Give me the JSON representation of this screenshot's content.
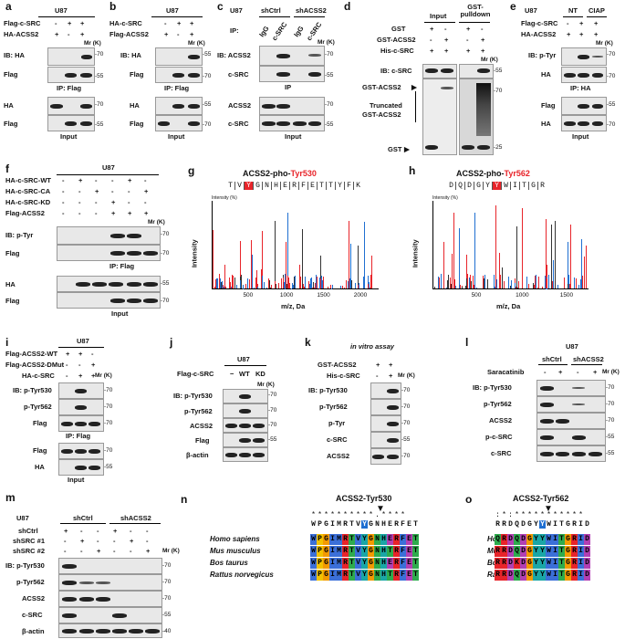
{
  "a": {
    "label": "a",
    "cell": "U87",
    "rows": [
      "Flag-c-SRC",
      "HA-ACSS2"
    ],
    "signs": [
      [
        "-",
        "+",
        "+"
      ],
      [
        "+",
        "-",
        "+"
      ]
    ],
    "mr": "Mr (K)",
    "ib1": "IB: HA",
    "ib2": "Flag",
    "ip": "IP: Flag",
    "in1": "HA",
    "in2": "Flag",
    "inp": "Input",
    "m70": "-70",
    "m55": "-55"
  },
  "b": {
    "label": "b",
    "cell": "U87",
    "rows": [
      "HA-c-SRC",
      "Flag-ACSS2"
    ],
    "signs": [
      [
        "-",
        "+",
        "+"
      ],
      [
        "+",
        "-",
        "+"
      ]
    ],
    "mr": "Mr (K)",
    "ib1": "IB: HA",
    "ib2": "Flag",
    "ip": "IP: Flag",
    "in1": "HA",
    "in2": "Flag",
    "inp": "Input",
    "m70": "-70",
    "m55": "-55"
  },
  "c": {
    "label": "c",
    "cell": "U87",
    "sh1": "shCtrl",
    "sh2": "shACSS2",
    "ip": "IP:",
    "lanes": [
      "IgG",
      "c-SRC",
      "IgG",
      "c-SRC"
    ],
    "mr": "Mr (K)",
    "ib1": "IB: ACSS2",
    "ib2": "c-SRC",
    "ipl": "IP",
    "in1": "ACSS2",
    "in2": "c-SRC",
    "inp": "Input",
    "m70": "-70",
    "m55": "-55"
  },
  "d": {
    "label": "d",
    "hdr1": "Input",
    "hdr2": "GST-pulldown",
    "rows": [
      "GST",
      "GST-ACSS2",
      "His-c-SRC"
    ],
    "signs": [
      [
        "+",
        "-",
        "+",
        "-"
      ],
      [
        "-",
        "+",
        "-",
        "+"
      ],
      [
        "+",
        "+",
        "+",
        "+"
      ]
    ],
    "mr": "Mr (K)",
    "ib": "IB: c-SRC",
    "gstacss2": "GST-ACSS2",
    "trunc1": "Truncated",
    "trunc2": "GST-ACSS2",
    "gst": "GST",
    "m55": "-55",
    "m70": "-70",
    "m25": "-25"
  },
  "e": {
    "label": "e",
    "cell": "U87",
    "nt": "NT",
    "ciap": "CIAP",
    "rows": [
      "Flag-c-SRC",
      "HA-ACSS2"
    ],
    "signs": [
      [
        "-",
        "+",
        "+"
      ],
      [
        "+",
        "+",
        "+"
      ]
    ],
    "mr": "Mr (K)",
    "ib1": "IB: p-Tyr",
    "ib2": "HA",
    "ip": "IP: HA",
    "in1": "Flag",
    "in2": "HA",
    "inp": "Input",
    "m70": "-70",
    "m55": "-55"
  },
  "f": {
    "label": "f",
    "cell": "U87",
    "rows": [
      "HA-c-SRC-WT",
      "HA-c-SRC-CA",
      "HA-c-SRC-KD",
      "Flag-ACSS2"
    ],
    "signs": [
      [
        "-",
        "+",
        "-",
        "-",
        "+",
        "-"
      ],
      [
        "-",
        "-",
        "+",
        "-",
        "-",
        "+"
      ],
      [
        "-",
        "-",
        "-",
        "+",
        "-",
        "-"
      ],
      [
        "-",
        "-",
        "-",
        "+",
        "+",
        "+"
      ]
    ],
    "mr": "Mr (K)",
    "ib1": "IB: p-Tyr",
    "ib2": "Flag",
    "ip": "IP: Flag",
    "in1": "HA",
    "in2": "Flag",
    "inp": "Input",
    "m70": "-70",
    "m55": "-55"
  },
  "g": {
    "label": "g",
    "title_a": "ACSS2-pho-",
    "title_b": "Tyr530",
    "seq": [
      "T",
      "V",
      "Y",
      "G",
      "N",
      "H",
      "E",
      "R",
      "F",
      "E",
      "T",
      "T",
      "Y",
      "F",
      "K"
    ],
    "ylab": "Intensity",
    "xlab": "m/z, Da",
    "ticks": [
      "500",
      "1000",
      "1500",
      "2000"
    ],
    "yt": "Intensity (%)"
  },
  "h": {
    "label": "h",
    "title_a": "ACSS2-pho-",
    "title_b": "Tyr562",
    "seq": [
      "D",
      "Q",
      "D",
      "G",
      "Y",
      "Y",
      "W",
      "I",
      "T",
      "G",
      "R"
    ],
    "ylab": "Intensity",
    "xlab": "m/z, Da",
    "ticks": [
      "500",
      "1000",
      "1500"
    ],
    "yt": "Intensity (%)"
  },
  "i": {
    "label": "i",
    "cell": "U87",
    "rows": [
      "Flag-ACSS2-WT",
      "Flag-ACSS2-DMut",
      "HA-c-SRC"
    ],
    "signs": [
      [
        "+",
        "+",
        "-"
      ],
      [
        "-",
        "-",
        "+"
      ],
      [
        "-",
        "+",
        "+"
      ]
    ],
    "mr": "Mr (K)",
    "ib1": "IB: p-Tyr530",
    "ib2": "p-Tyr562",
    "ib3": "Flag",
    "ip": "IP: Flag",
    "in1": "Flag",
    "in2": "HA",
    "inp": "Input",
    "m70": "-70",
    "m55": "-55"
  },
  "j": {
    "label": "j",
    "cell": "U87",
    "row": "Flag-c-SRC",
    "lanes": [
      "−",
      "WT",
      "KD"
    ],
    "mr": "Mr (K)",
    "ibs": [
      "IB: p-Tyr530",
      "p-Tyr562",
      "ACSS2",
      "Flag",
      "β-actin"
    ],
    "m70": "-70",
    "m55": "-55"
  },
  "k": {
    "label": "k",
    "title": "in vitro assay",
    "rows": [
      "GST-ACSS2",
      "His-c-SRC"
    ],
    "signs": [
      [
        "+",
        "+"
      ],
      [
        "-",
        "+"
      ]
    ],
    "mr": "Mr (K)",
    "ibs": [
      "IB: p-Tyr530",
      "p-Tyr562",
      "p-Tyr",
      "c-SRC",
      "ACSS2"
    ],
    "m70": "-70",
    "m55": "-55"
  },
  "l": {
    "label": "l",
    "cell": "U87",
    "sh1": "shCtrl",
    "sh2": "shACSS2",
    "row": "Saracatinib",
    "signs": [
      "-",
      "+",
      "-",
      "+"
    ],
    "mr": "Mr (K)",
    "ibs": [
      "IB: p-Tyr530",
      "p-Tyr562",
      "ACSS2",
      "p-c-SRC",
      "c-SRC"
    ],
    "m70": "-70",
    "m55": "-55"
  },
  "m": {
    "label": "m",
    "cell": "U87",
    "sh1": "shCtrl",
    "sh2": "shACSS2",
    "rows": [
      "shCtrl",
      "shSRC #1",
      "shSRC #2"
    ],
    "signs": [
      [
        "+",
        "-",
        "-",
        "+",
        "-",
        "-"
      ],
      [
        "-",
        "+",
        "-",
        "-",
        "+",
        "-"
      ],
      [
        "-",
        "-",
        "+",
        "-",
        "-",
        "+"
      ]
    ],
    "mr": "Mr (K)",
    "ibs": [
      "IB: p-Tyr530",
      "p-Tyr562",
      "ACSS2",
      "c-SRC",
      "β-actin"
    ],
    "m70": "-70",
    "m55": "-55",
    "m40": "-40"
  },
  "n": {
    "label": "n",
    "title": "ACSS2-Tyr530",
    "stars": "**********.****",
    "consensus": "WPGIMRTVYGNHERFET",
    "species": [
      "Homo sapiens",
      "Mus musculus",
      "Bos taurus",
      "Rattus norvegicus"
    ],
    "seqs": [
      "WPGIMRTVYGNHERFET",
      "WPGIMRTVYGNHTRFET",
      "WPGIMRTVYGNHERFET",
      "WPGIMRTVYGNHTRFET"
    ]
  },
  "o": {
    "label": "o",
    "title": "ACSS2-Tyr562",
    "stars": ":*:***********",
    "consensus": "RRDQDGYYWITGRID",
    "species": [
      "Homo sapiens",
      "Mus musculus",
      "Bos taurus",
      "Rattus norvegicus"
    ],
    "seqs": [
      "QRDQDGYYWITGRID",
      "RRDQDGYYWITGRID",
      "RRDKDGYYWITGRID",
      "RRDQDGYYWITGRID"
    ]
  },
  "colors": {
    "red": "#e8242a",
    "blue": "#1f6fd1"
  }
}
